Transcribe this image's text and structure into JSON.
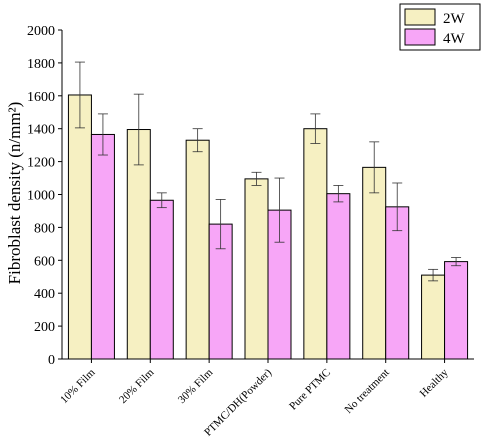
{
  "chart_data": {
    "type": "bar",
    "title": "",
    "xlabel": "",
    "ylabel": "Fibroblast density (n/mm²)",
    "ylim": [
      0,
      2000
    ],
    "yticks": [
      "0",
      "200",
      "400",
      "600",
      "800",
      "1000",
      "1200",
      "1400",
      "1600",
      "1800",
      "2000"
    ],
    "categories": [
      "10% Film",
      "20% Film",
      "30% Film",
      "PTMC/DH(Powder)",
      "Pure PTMC",
      "No treatment",
      "Healthy"
    ],
    "series": [
      {
        "name": "2W",
        "color": "#f6f0c2",
        "values": [
          1605,
          1395,
          1330,
          1095,
          1400,
          1165,
          510
        ],
        "errors": [
          200,
          215,
          70,
          40,
          90,
          155,
          35
        ]
      },
      {
        "name": "4W",
        "color": "#f7a6f7",
        "values": [
          1365,
          965,
          820,
          905,
          1005,
          925,
          592
        ],
        "errors": [
          125,
          45,
          150,
          195,
          50,
          145,
          25
        ]
      }
    ],
    "legend_position": "top-right",
    "grid": false,
    "error_bars": true
  }
}
